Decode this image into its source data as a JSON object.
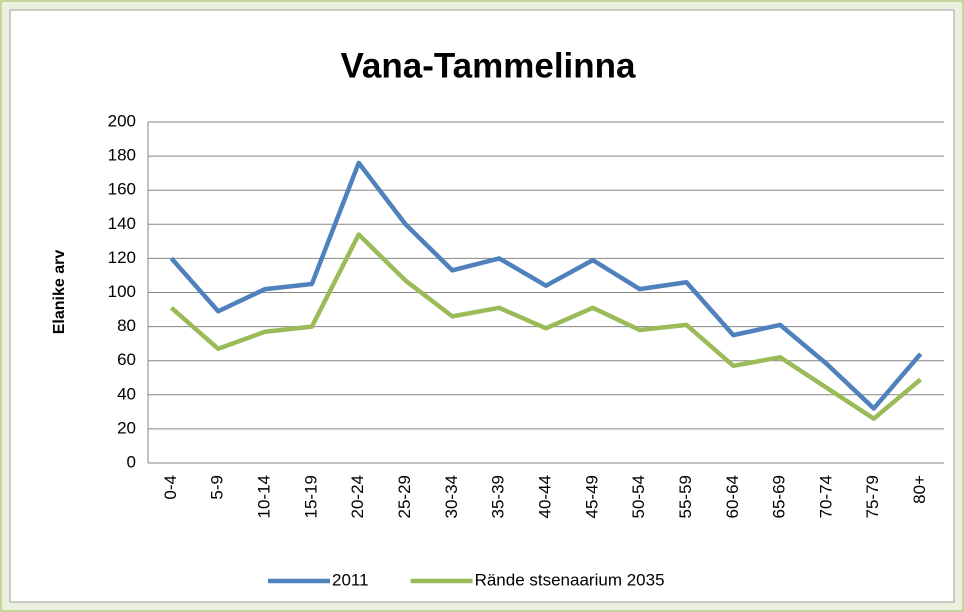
{
  "chart_data": {
    "type": "line",
    "title": "Vana-Tammelinna",
    "ylabel": "Elanike arv",
    "categories": [
      "0-4",
      "5-9",
      "10-14",
      "15-19",
      "20-24",
      "25-29",
      "30-34",
      "35-39",
      "40-44",
      "45-49",
      "50-54",
      "55-59",
      "60-64",
      "65-69",
      "70-74",
      "75-79",
      "80+"
    ],
    "series": [
      {
        "name": "2011",
        "color": "#4f81bd",
        "values": [
          120,
          89,
          102,
          105,
          176,
          140,
          113,
          120,
          104,
          119,
          102,
          106,
          75,
          81,
          58,
          32,
          64
        ]
      },
      {
        "name": "Rände stsenaarium 2035",
        "color": "#9bbb59",
        "values": [
          91,
          67,
          77,
          80,
          134,
          107,
          86,
          91,
          79,
          91,
          78,
          81,
          57,
          62,
          44,
          26,
          49
        ]
      }
    ],
    "ylim": [
      0,
      200
    ],
    "yticks": [
      0,
      20,
      40,
      60,
      80,
      100,
      120,
      140,
      160,
      180,
      200
    ],
    "grid": true,
    "legend": "bottom"
  }
}
